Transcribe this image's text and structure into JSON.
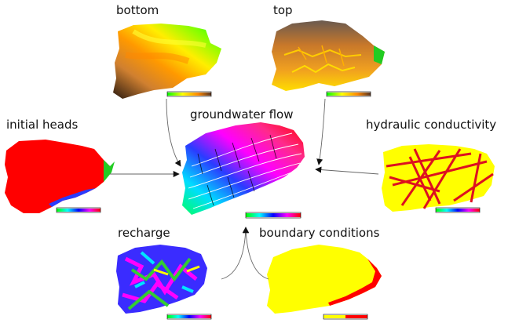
{
  "labels": {
    "bottom": "bottom",
    "top": "top",
    "initial_heads": "initial heads",
    "groundwater_flow": "groundwater flow",
    "hydraulic_conductivity": "hydraulic conductivity",
    "recharge": "recharge",
    "boundary_conditions": "boundary conditions"
  },
  "colors": {
    "red": "#ff0000",
    "yellow": "#ffff00",
    "magenta": "#ff00ff",
    "blue": "#2a3cff",
    "green": "#22cc22",
    "cyan": "#00e5ff",
    "orange": "#f07a10",
    "arrow": "#666666"
  }
}
